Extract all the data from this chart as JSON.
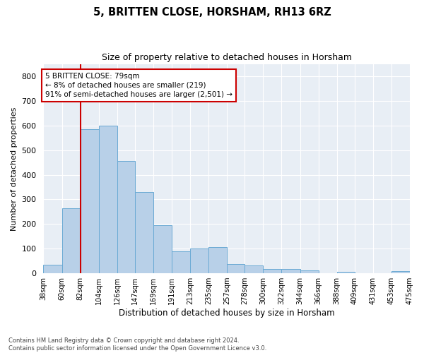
{
  "title": "5, BRITTEN CLOSE, HORSHAM, RH13 6RZ",
  "subtitle": "Size of property relative to detached houses in Horsham",
  "xlabel": "Distribution of detached houses by size in Horsham",
  "ylabel": "Number of detached properties",
  "bar_color": "#b8d0e8",
  "bar_edge_color": "#6aaad4",
  "background_color": "#e8eef5",
  "grid_color": "#ffffff",
  "fig_background": "#ffffff",
  "vline_x": 82,
  "vline_color": "#cc0000",
  "bin_edges": [
    38,
    60,
    82,
    104,
    126,
    147,
    169,
    191,
    213,
    235,
    257,
    278,
    300,
    322,
    344,
    366,
    388,
    409,
    431,
    453,
    475
  ],
  "bar_heights": [
    35,
    265,
    585,
    600,
    455,
    330,
    195,
    90,
    102,
    105,
    37,
    32,
    17,
    17,
    13,
    0,
    7,
    0,
    0,
    8
  ],
  "tick_labels": [
    "38sqm",
    "60sqm",
    "82sqm",
    "104sqm",
    "126sqm",
    "147sqm",
    "169sqm",
    "191sqm",
    "213sqm",
    "235sqm",
    "257sqm",
    "278sqm",
    "300sqm",
    "322sqm",
    "344sqm",
    "366sqm",
    "388sqm",
    "409sqm",
    "431sqm",
    "453sqm",
    "475sqm"
  ],
  "ylim": [
    0,
    850
  ],
  "yticks": [
    0,
    100,
    200,
    300,
    400,
    500,
    600,
    700,
    800
  ],
  "annotation_text": "5 BRITTEN CLOSE: 79sqm\n← 8% of detached houses are smaller (219)\n91% of semi-detached houses are larger (2,501) →",
  "annotation_box_color": "#ffffff",
  "annotation_box_edge_color": "#cc0000",
  "footer_line1": "Contains HM Land Registry data © Crown copyright and database right 2024.",
  "footer_line2": "Contains public sector information licensed under the Open Government Licence v3.0."
}
